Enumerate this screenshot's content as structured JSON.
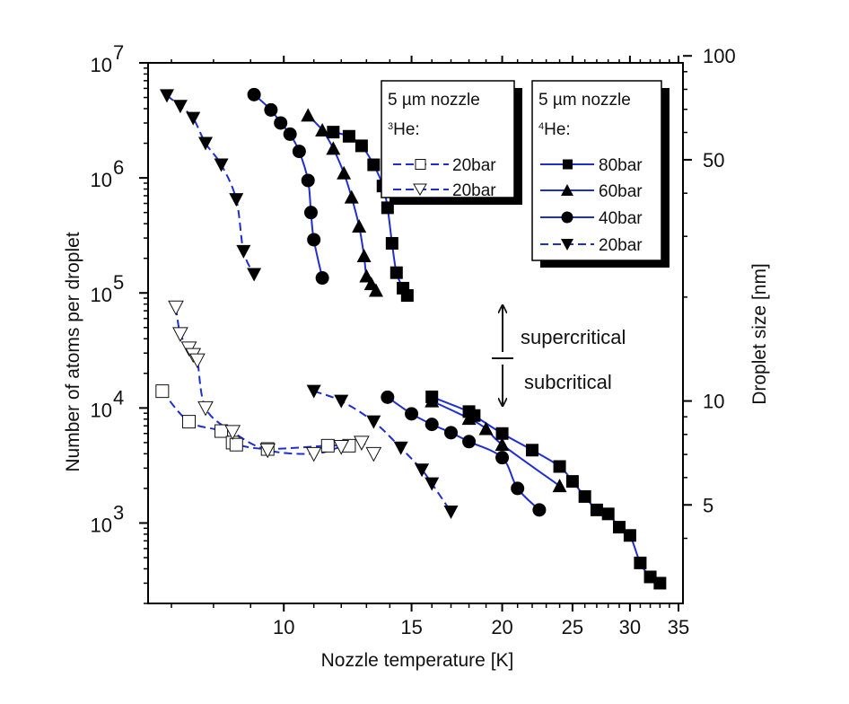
{
  "chart_data": {
    "type": "scatter",
    "x_axis": {
      "label": "Nozzle temperature [K]",
      "scale": "log",
      "range": [
        6.5,
        35.5
      ],
      "ticks": [
        10,
        15,
        20,
        25,
        30,
        35
      ],
      "tick_labels": [
        "10",
        "15",
        "20",
        "25",
        "30",
        "35"
      ]
    },
    "y_axis_left": {
      "label": "Number of atoms per droplet",
      "scale": "log",
      "range": [
        200,
        10000000
      ],
      "ticks": [
        1000,
        10000,
        100000,
        1000000,
        10000000
      ],
      "tick_labels": [
        {
          "base": "10",
          "exp": "3"
        },
        {
          "base": "10",
          "exp": "4"
        },
        {
          "base": "10",
          "exp": "5"
        },
        {
          "base": "10",
          "exp": "6"
        },
        {
          "base": "10",
          "exp": "7"
        }
      ]
    },
    "y_axis_right": {
      "label": "Droplet size  [nm]",
      "scale": "log",
      "ticks": [
        5,
        10,
        50,
        100
      ],
      "tick_labels": [
        "5",
        "10",
        "50",
        "100"
      ]
    },
    "legends": [
      {
        "header": "5 µm nozzle",
        "isotope_mass": "3",
        "isotope_symbol": "He:",
        "entries": [
          "20bar",
          "20bar"
        ]
      },
      {
        "header": "5 µm nozzle",
        "isotope_mass": "4",
        "isotope_symbol": "He:",
        "entries": [
          "80bar",
          "60bar",
          "40bar",
          "20bar"
        ]
      }
    ],
    "annotations": {
      "upper": "supercritical",
      "lower": "subcritical"
    },
    "grid": false,
    "series": [
      {
        "name": "80bar",
        "isotope": "4He",
        "marker": "square-filled",
        "segments": [
          [
            [
              11.7,
              2500000
            ],
            [
              12.3,
              2300000
            ],
            [
              12.8,
              1900000
            ],
            [
              13.3,
              1300000
            ],
            [
              13.7,
              850000
            ],
            [
              13.9,
              550000
            ],
            [
              14.1,
              270000
            ],
            [
              14.3,
              150000
            ],
            [
              14.6,
              110000
            ],
            [
              14.8,
              95000
            ]
          ],
          [
            [
              16,
              12500
            ],
            [
              18,
              9300
            ],
            [
              18.3,
              8600
            ],
            [
              20,
              6000
            ],
            [
              22,
              4300
            ],
            [
              24,
              3100
            ],
            [
              25,
              2300
            ],
            [
              26,
              1700
            ],
            [
              27,
              1300
            ],
            [
              28,
              1200
            ],
            [
              29,
              920
            ],
            [
              30,
              780
            ],
            [
              31,
              450
            ],
            [
              32,
              340
            ],
            [
              33,
              300
            ]
          ]
        ]
      },
      {
        "name": "60bar",
        "isotope": "4He",
        "marker": "triangle-up-filled",
        "segments": [
          [
            [
              10.8,
              3500000
            ],
            [
              11.3,
              2600000
            ],
            [
              11.7,
              1800000
            ],
            [
              12.1,
              1100000
            ],
            [
              12.4,
              680000
            ],
            [
              12.7,
              380000
            ],
            [
              12.9,
              210000
            ],
            [
              13.0,
              140000
            ],
            [
              13.2,
              120000
            ],
            [
              13.4,
              105000
            ]
          ],
          [
            [
              16,
              11500
            ],
            [
              18,
              8100
            ],
            [
              19,
              6600
            ],
            [
              20,
              4800
            ],
            [
              24,
              2100
            ]
          ]
        ]
      },
      {
        "name": "40bar",
        "isotope": "4He",
        "marker": "circle-filled",
        "segments": [
          [
            [
              9.1,
              5300000
            ],
            [
              9.6,
              3900000
            ],
            [
              9.9,
              3000000
            ],
            [
              10.2,
              2400000
            ],
            [
              10.5,
              1700000
            ],
            [
              10.8,
              950000
            ],
            [
              10.9,
              500000
            ],
            [
              11.0,
              290000
            ],
            [
              11.3,
              135000
            ]
          ],
          [
            [
              13.9,
              12400
            ],
            [
              15,
              8900
            ],
            [
              16,
              7200
            ],
            [
              17,
              6100
            ],
            [
              18,
              5100
            ],
            [
              20,
              3700
            ],
            [
              21,
              2000
            ],
            [
              22.5,
              1300
            ]
          ]
        ]
      },
      {
        "name": "20bar",
        "isotope": "4He",
        "marker": "triangle-down-filled",
        "segments": [
          [
            [
              6.9,
              5200000
            ],
            [
              7.2,
              4200000
            ],
            [
              7.5,
              3300000
            ],
            [
              7.8,
              2000000
            ],
            [
              8.2,
              1300000
            ],
            [
              8.6,
              650000
            ],
            [
              8.8,
              230000
            ],
            [
              9.1,
              145000
            ]
          ],
          [
            [
              11.0,
              14000
            ],
            [
              12.0,
              11500
            ],
            [
              13.3,
              7600
            ],
            [
              14.5,
              4500
            ],
            [
              15.5,
              2900
            ],
            [
              16.0,
              2200
            ],
            [
              17.0,
              1250
            ]
          ]
        ]
      },
      {
        "name": "20bar",
        "isotope": "3He",
        "marker": "square-open",
        "segments": [
          [
            [
              6.8,
              14000
            ],
            [
              7.4,
              7600
            ],
            [
              8.2,
              6300
            ],
            [
              8.5,
              5000
            ],
            [
              8.6,
              4800
            ],
            [
              9.5,
              4400
            ],
            [
              11.5,
              4700
            ],
            [
              12.3,
              4700
            ]
          ]
        ]
      },
      {
        "name": "20bar",
        "isotope": "3He",
        "marker": "triangle-down-open",
        "segments": [
          [
            [
              7.1,
              75000
            ],
            [
              7.2,
              44000
            ],
            [
              7.4,
              33000
            ],
            [
              7.5,
              29000
            ],
            [
              7.6,
              26000
            ],
            [
              7.8,
              10000
            ],
            [
              8.5,
              6200
            ],
            [
              9.5,
              4300
            ],
            [
              11.0,
              4000
            ],
            [
              12.0,
              4600
            ],
            [
              12.8,
              5000
            ],
            [
              13.3,
              4000
            ]
          ]
        ]
      }
    ]
  }
}
